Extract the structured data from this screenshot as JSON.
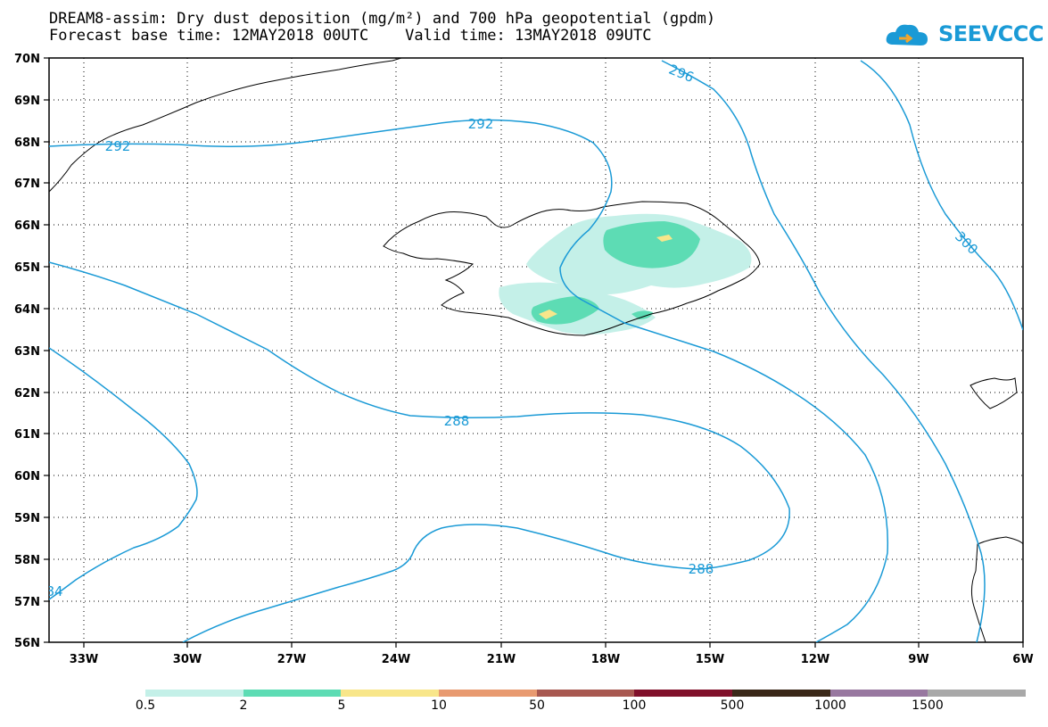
{
  "title": {
    "line1": "DREAM8-assim: Dry dust deposition (mg/m²) and 700 hPa geopotential (gpdm)",
    "line2": "Forecast base time: 12MAY2018 00UTC    Valid time: 13MAY2018 09UTC"
  },
  "logo": {
    "text": "SEEVCCC",
    "icon": "cloud-icon",
    "color": "#1a9ad6"
  },
  "axes": {
    "lat_labels": [
      "70N",
      "69N",
      "68N",
      "67N",
      "66N",
      "65N",
      "64N",
      "63N",
      "62N",
      "61N",
      "60N",
      "59N",
      "58N",
      "57N",
      "56N"
    ],
    "lon_labels": [
      "33W",
      "30W",
      "27W",
      "24W",
      "21W",
      "18W",
      "15W",
      "12W",
      "9W",
      "6W"
    ]
  },
  "contours": {
    "color": "#1a9ad6",
    "labels": [
      "296",
      "292",
      "292",
      "300",
      "288",
      "288",
      "84"
    ]
  },
  "legend": {
    "colors": [
      "#c4f0e8",
      "#5ddcb4",
      "#f8e68a",
      "#e89a70",
      "#a85850",
      "#80102a",
      "#3a2818",
      "#9878a0",
      "#a8a8a8"
    ],
    "labels": [
      "0.5",
      "2",
      "5",
      "10",
      "50",
      "100",
      "500",
      "1000",
      "1500"
    ]
  }
}
